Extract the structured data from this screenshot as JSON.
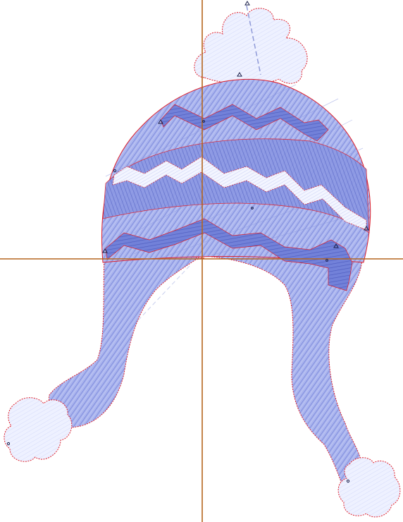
{
  "app": {
    "view": "embroidery-design-canvas"
  },
  "colors": {
    "background": "#ffffff",
    "guide_lines": "#b5651d",
    "hat_fill": "#a9b3ec",
    "hat_stitch": "#6f7fd8",
    "band_dark": "#7d8be0",
    "zigzag_white": "#f2f4ff",
    "pompom_fill": "#eef1ff",
    "outline_red": "#e0202a",
    "node_marker": "#1a1f4a"
  },
  "design": {
    "object": "winter-hat-with-earflaps",
    "parts": [
      "crown",
      "top-pompom",
      "left-earflap",
      "right-earflap",
      "left-pompom",
      "right-pompom",
      "zigzag-band-top",
      "zigzag-band-middle",
      "zigzag-band-bottom"
    ]
  }
}
